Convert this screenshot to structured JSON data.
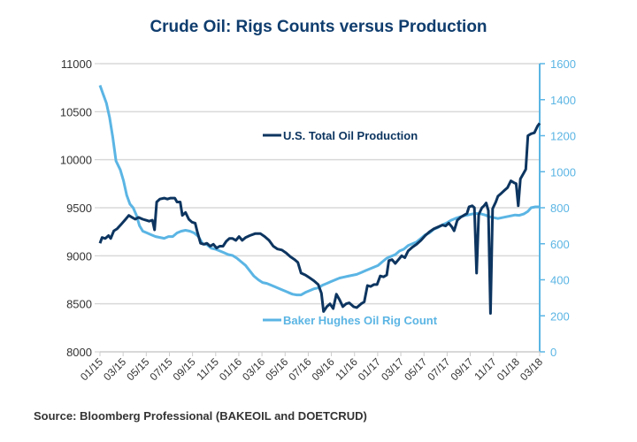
{
  "chart_data": {
    "type": "line",
    "title": "Crude Oil: Rigs Counts versus Production",
    "source": "Source: Bloomberg Professional (BAKEOIL and DOETCRUD)",
    "xlabel": "",
    "x_ticks": [
      "01/15",
      "03/15",
      "05/15",
      "07/15",
      "09/15",
      "11/15",
      "01/16",
      "03/16",
      "05/16",
      "07/16",
      "09/16",
      "11/16",
      "01/17",
      "03/17",
      "05/17",
      "07/17",
      "09/17",
      "11/17",
      "01/18",
      "03/18"
    ],
    "x_unit": "months since 01/15",
    "x_range": [
      0,
      38
    ],
    "left_axis": {
      "label": "",
      "ylim": [
        8000,
        11000
      ],
      "ticks": [
        8000,
        8500,
        9000,
        9500,
        10000,
        10500,
        11000
      ]
    },
    "right_axis": {
      "label": "",
      "ylim": [
        0,
        1600
      ],
      "ticks": [
        0,
        200,
        400,
        600,
        800,
        1000,
        1200,
        1400,
        1600
      ]
    },
    "grid": true,
    "series": [
      {
        "name": "U.S. Total Oil Production",
        "axis": "left",
        "color": "#0d3560",
        "legend_position": "upper-center",
        "points": [
          [
            0,
            9130
          ],
          [
            0.2,
            9190
          ],
          [
            0.5,
            9180
          ],
          [
            0.8,
            9210
          ],
          [
            1.0,
            9180
          ],
          [
            1.3,
            9260
          ],
          [
            1.6,
            9280
          ],
          [
            2.0,
            9330
          ],
          [
            2.4,
            9380
          ],
          [
            2.7,
            9420
          ],
          [
            3.0,
            9400
          ],
          [
            3.3,
            9380
          ],
          [
            3.6,
            9400
          ],
          [
            4.0,
            9380
          ],
          [
            4.3,
            9370
          ],
          [
            4.6,
            9360
          ],
          [
            4.9,
            9370
          ],
          [
            5.1,
            9270
          ],
          [
            5.3,
            9560
          ],
          [
            5.6,
            9590
          ],
          [
            6.0,
            9600
          ],
          [
            6.3,
            9590
          ],
          [
            6.6,
            9600
          ],
          [
            7.0,
            9600
          ],
          [
            7.2,
            9560
          ],
          [
            7.5,
            9560
          ],
          [
            7.7,
            9420
          ],
          [
            8.0,
            9450
          ],
          [
            8.3,
            9380
          ],
          [
            8.6,
            9350
          ],
          [
            8.9,
            9340
          ],
          [
            9.1,
            9250
          ],
          [
            9.4,
            9130
          ],
          [
            9.7,
            9120
          ],
          [
            10.0,
            9130
          ],
          [
            10.3,
            9100
          ],
          [
            10.6,
            9120
          ],
          [
            10.9,
            9080
          ],
          [
            11.2,
            9100
          ],
          [
            11.5,
            9100
          ],
          [
            11.8,
            9150
          ],
          [
            12.1,
            9180
          ],
          [
            12.4,
            9180
          ],
          [
            12.7,
            9160
          ],
          [
            13.0,
            9200
          ],
          [
            13.3,
            9160
          ],
          [
            13.6,
            9190
          ],
          [
            14.0,
            9210
          ],
          [
            14.5,
            9230
          ],
          [
            15.0,
            9230
          ],
          [
            15.4,
            9200
          ],
          [
            15.8,
            9160
          ],
          [
            16.2,
            9100
          ],
          [
            16.6,
            9070
          ],
          [
            17.0,
            9060
          ],
          [
            17.4,
            9030
          ],
          [
            17.8,
            8990
          ],
          [
            18.2,
            8960
          ],
          [
            18.5,
            8930
          ],
          [
            18.8,
            8820
          ],
          [
            19.2,
            8800
          ],
          [
            19.6,
            8770
          ],
          [
            20.0,
            8740
          ],
          [
            20.4,
            8700
          ],
          [
            20.7,
            8610
          ],
          [
            20.9,
            8420
          ],
          [
            21.2,
            8470
          ],
          [
            21.5,
            8500
          ],
          [
            21.8,
            8450
          ],
          [
            22.1,
            8600
          ],
          [
            22.4,
            8540
          ],
          [
            22.7,
            8470
          ],
          [
            23.0,
            8500
          ],
          [
            23.3,
            8510
          ],
          [
            23.7,
            8470
          ],
          [
            24.0,
            8460
          ],
          [
            24.4,
            8500
          ],
          [
            24.7,
            8520
          ],
          [
            25.0,
            8690
          ],
          [
            25.3,
            8680
          ],
          [
            25.6,
            8700
          ],
          [
            25.9,
            8700
          ],
          [
            26.2,
            8790
          ],
          [
            26.5,
            8780
          ],
          [
            26.8,
            8800
          ],
          [
            27.0,
            8950
          ],
          [
            27.3,
            8960
          ],
          [
            27.6,
            8920
          ],
          [
            27.9,
            8960
          ],
          [
            28.2,
            9000
          ],
          [
            28.5,
            8980
          ],
          [
            28.8,
            9050
          ],
          [
            29.2,
            9090
          ],
          [
            29.6,
            9120
          ],
          [
            30.0,
            9160
          ],
          [
            30.4,
            9210
          ],
          [
            30.8,
            9250
          ],
          [
            31.2,
            9280
          ],
          [
            31.6,
            9300
          ],
          [
            32.0,
            9320
          ],
          [
            32.3,
            9310
          ],
          [
            32.6,
            9340
          ],
          [
            32.9,
            9300
          ],
          [
            33.1,
            9260
          ],
          [
            33.4,
            9370
          ],
          [
            33.7,
            9400
          ],
          [
            34.0,
            9420
          ],
          [
            34.3,
            9440
          ],
          [
            34.5,
            9510
          ],
          [
            34.8,
            9520
          ],
          [
            35.0,
            9500
          ],
          [
            35.2,
            8820
          ],
          [
            35.4,
            9430
          ],
          [
            35.7,
            9500
          ],
          [
            35.9,
            9520
          ],
          [
            36.1,
            9550
          ],
          [
            36.3,
            9470
          ],
          [
            36.5,
            8400
          ],
          [
            36.7,
            9490
          ],
          [
            37.0,
            9560
          ],
          [
            37.2,
            9620
          ]
        ]
      },
      {
        "name": "Baker Hughes Oil Rig Count",
        "axis": "right",
        "color": "#5bb5e4",
        "legend_position": "lower-center",
        "points": [
          [
            0,
            1480
          ],
          [
            0.3,
            1430
          ],
          [
            0.6,
            1380
          ],
          [
            0.9,
            1300
          ],
          [
            1.2,
            1190
          ],
          [
            1.5,
            1060
          ],
          [
            1.9,
            1010
          ],
          [
            2.2,
            950
          ],
          [
            2.5,
            870
          ],
          [
            2.8,
            820
          ],
          [
            3.1,
            800
          ],
          [
            3.4,
            760
          ],
          [
            3.7,
            700
          ],
          [
            4.0,
            670
          ],
          [
            4.4,
            660
          ],
          [
            4.8,
            650
          ],
          [
            5.2,
            640
          ],
          [
            5.6,
            635
          ],
          [
            6.0,
            630
          ],
          [
            6.4,
            640
          ],
          [
            6.8,
            640
          ],
          [
            7.2,
            660
          ],
          [
            7.6,
            670
          ],
          [
            8.0,
            675
          ],
          [
            8.4,
            670
          ],
          [
            8.8,
            660
          ],
          [
            9.2,
            640
          ],
          [
            9.6,
            600
          ],
          [
            10.0,
            595
          ],
          [
            10.4,
            575
          ],
          [
            10.8,
            570
          ],
          [
            11.2,
            560
          ],
          [
            11.6,
            550
          ],
          [
            12.0,
            540
          ],
          [
            12.4,
            535
          ],
          [
            12.8,
            520
          ],
          [
            13.2,
            500
          ],
          [
            13.6,
            480
          ],
          [
            14.0,
            450
          ],
          [
            14.4,
            420
          ],
          [
            14.8,
            400
          ],
          [
            15.2,
            385
          ],
          [
            15.6,
            380
          ],
          [
            16.0,
            370
          ],
          [
            16.4,
            360
          ],
          [
            16.8,
            350
          ],
          [
            17.2,
            340
          ],
          [
            17.6,
            330
          ],
          [
            18.0,
            320
          ],
          [
            18.4,
            316
          ],
          [
            18.8,
            316
          ],
          [
            19.2,
            330
          ],
          [
            19.6,
            340
          ],
          [
            20.0,
            350
          ],
          [
            20.4,
            355
          ],
          [
            20.8,
            370
          ],
          [
            21.2,
            380
          ],
          [
            21.6,
            390
          ],
          [
            22.0,
            400
          ],
          [
            22.4,
            410
          ],
          [
            22.8,
            415
          ],
          [
            23.2,
            420
          ],
          [
            23.6,
            425
          ],
          [
            24.0,
            430
          ],
          [
            24.4,
            440
          ],
          [
            24.8,
            450
          ],
          [
            25.2,
            460
          ],
          [
            25.6,
            470
          ],
          [
            26.0,
            480
          ],
          [
            26.4,
            500
          ],
          [
            26.8,
            520
          ],
          [
            27.2,
            530
          ],
          [
            27.6,
            540
          ],
          [
            28.0,
            560
          ],
          [
            28.4,
            570
          ],
          [
            28.8,
            590
          ],
          [
            29.2,
            600
          ],
          [
            29.6,
            610
          ],
          [
            30.0,
            630
          ],
          [
            30.4,
            650
          ],
          [
            30.8,
            660
          ],
          [
            31.2,
            680
          ],
          [
            31.6,
            690
          ],
          [
            32.0,
            705
          ],
          [
            32.4,
            715
          ],
          [
            32.8,
            730
          ],
          [
            33.2,
            740
          ],
          [
            33.6,
            748
          ],
          [
            34.0,
            755
          ],
          [
            34.4,
            760
          ],
          [
            34.8,
            765
          ],
          [
            35.2,
            768
          ],
          [
            35.6,
            766
          ],
          [
            36.0,
            760
          ],
          [
            36.4,
            750
          ],
          [
            36.8,
            745
          ],
          [
            37.2,
            740
          ]
        ]
      }
    ],
    "production_tail": [
      [
        37.2,
        9620
      ],
      [
        37.5,
        9650
      ],
      [
        37.8,
        9680
      ],
      [
        38.1,
        9710
      ],
      [
        38.4,
        9780
      ],
      [
        38.7,
        9760
      ],
      [
        38.9,
        9750
      ],
      [
        39.1,
        9520
      ],
      [
        39.3,
        9800
      ],
      [
        39.6,
        9860
      ],
      [
        39.8,
        9900
      ],
      [
        40.0,
        10250
      ],
      [
        40.3,
        10270
      ],
      [
        40.6,
        10280
      ],
      [
        40.9,
        10350
      ],
      [
        41.1,
        10380
      ]
    ],
    "rig_tail": [
      [
        37.2,
        740
      ],
      [
        37.6,
        745
      ],
      [
        38.0,
        750
      ],
      [
        38.4,
        755
      ],
      [
        38.8,
        760
      ],
      [
        39.2,
        758
      ],
      [
        39.6,
        765
      ],
      [
        40.0,
        780
      ],
      [
        40.3,
        800
      ],
      [
        40.7,
        805
      ],
      [
        41.1,
        805
      ]
    ]
  }
}
